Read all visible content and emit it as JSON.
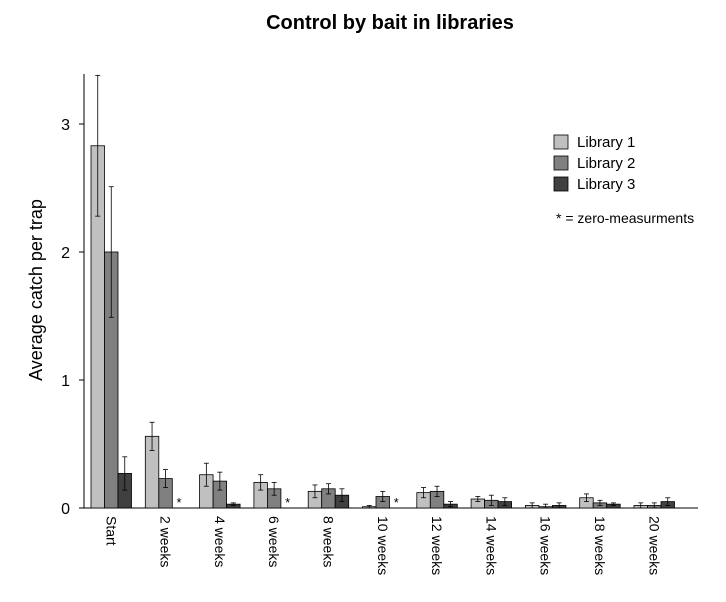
{
  "chart_data": {
    "type": "bar",
    "title": "Control by bait in libraries",
    "xlabel": "",
    "ylabel": "Average catch per trap",
    "ylim": [
      0,
      3.4
    ],
    "yticks": [
      0,
      1,
      2,
      3
    ],
    "grid": false,
    "legend_position": "top-right",
    "categories": [
      "Start",
      "2 weeks",
      "4 weeks",
      "6 weeks",
      "8 weeks",
      "10 weeks",
      "12 weeks",
      "14 weeks",
      "16 weeks",
      "18 weeks",
      "20 weeks"
    ],
    "series": [
      {
        "name": "Library 1",
        "color": "#c0c0c0",
        "values": [
          2.83,
          0.56,
          0.26,
          0.2,
          0.13,
          0.01,
          0.12,
          0.07,
          0.02,
          0.08,
          0.02
        ],
        "errors": [
          0.55,
          0.11,
          0.09,
          0.06,
          0.05,
          0.01,
          0.04,
          0.02,
          0.02,
          0.03,
          0.02
        ]
      },
      {
        "name": "Library 2",
        "color": "#808080",
        "values": [
          2.0,
          0.23,
          0.21,
          0.15,
          0.15,
          0.09,
          0.13,
          0.06,
          0.01,
          0.04,
          0.02
        ],
        "errors": [
          0.51,
          0.07,
          0.07,
          0.05,
          0.04,
          0.04,
          0.04,
          0.04,
          0.02,
          0.02,
          0.02
        ]
      },
      {
        "name": "Library 3",
        "color": "#404040",
        "values": [
          0.27,
          0.0,
          0.03,
          0.0,
          0.1,
          0.0,
          0.03,
          0.05,
          0.02,
          0.03,
          0.05
        ],
        "errors": [
          0.13,
          0.0,
          0.01,
          0.0,
          0.05,
          0.0,
          0.02,
          0.03,
          0.02,
          0.01,
          0.03
        ]
      }
    ],
    "zero_markers": [
      {
        "category": "2 weeks",
        "series": "Library 3",
        "text": "*"
      },
      {
        "category": "6 weeks",
        "series": "Library 3",
        "text": "*"
      },
      {
        "category": "10 weeks",
        "series": "Library 3",
        "text": "*"
      }
    ],
    "annotation": "* = zero-measurments"
  }
}
